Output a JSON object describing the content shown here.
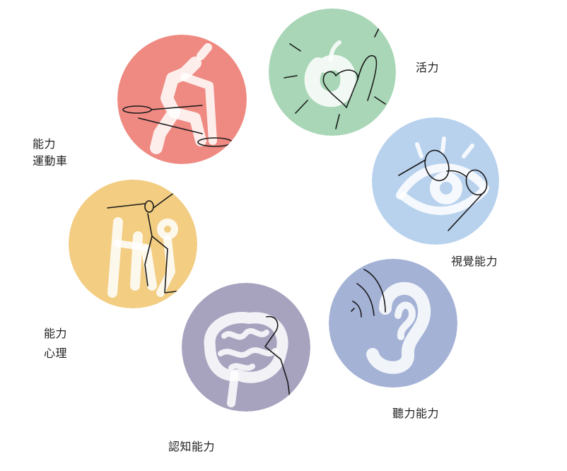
{
  "categories": {
    "vitality": {
      "label_lines": [
        "活力"
      ],
      "color": "#a8d6b6"
    },
    "motor": {
      "label_lines": [
        "能力",
        "運動車"
      ],
      "color": "#ef8a82"
    },
    "vision": {
      "label_lines": [
        "視覺能力"
      ],
      "color": "#b8d2ee"
    },
    "psych": {
      "label_lines": [
        "能力",
        "心理"
      ],
      "color": "#f2cd82"
    },
    "hearing": {
      "label_lines": [
        "聽力能力"
      ],
      "color": "#a4b2d6"
    },
    "cognition": {
      "label_lines": [
        "認知能力"
      ],
      "color": "#a7a3bf"
    }
  },
  "icons": {
    "vitality": "apple-heart-icon",
    "motor": "walker-icon",
    "vision": "eye-glasses-icon",
    "psych": "jumping-figure-icon",
    "hearing": "ear-icon",
    "cognition": "brain-icon"
  }
}
